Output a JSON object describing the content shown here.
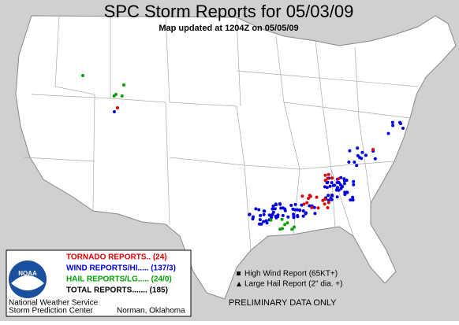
{
  "header": {
    "title": "SPC Storm Reports for 05/03/09",
    "subtitle": "Map updated at 1204Z on 05/05/09"
  },
  "legend": {
    "tornado": "TORNADO REPORTS.. (24)",
    "wind": "WIND REPORTS/HI..... (137/3)",
    "hail": "HAIL REPORTS/LG..... (24/0)",
    "total": "TOTAL REPORTS....... (185)",
    "logo": "NOAA",
    "org1": "National Weather Service",
    "org2": "Storm Prediction Center",
    "org3": "Norman, Oklahoma"
  },
  "key": {
    "high_wind": "High Wind Report (65KT+)",
    "large_hail": "Large Hail Report (2\" dia. +)"
  },
  "footer": {
    "note": "PRELIMINARY DATA ONLY"
  }
}
